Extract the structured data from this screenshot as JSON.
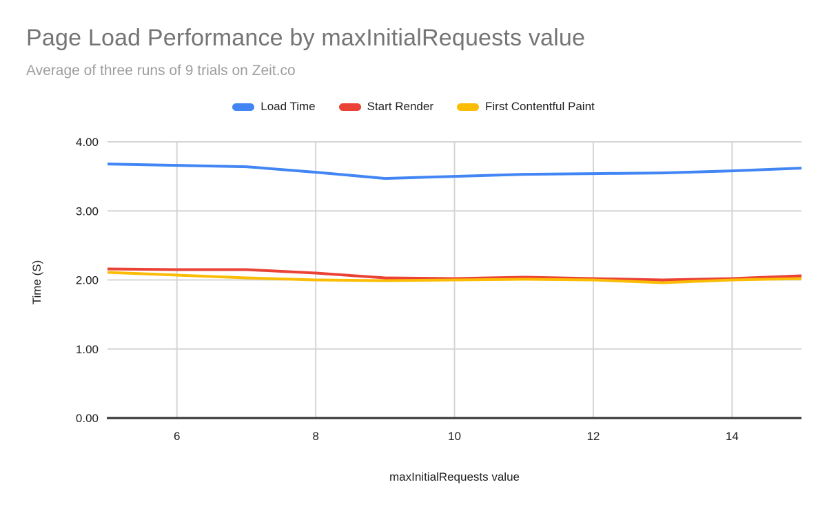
{
  "chart_data": {
    "type": "line",
    "title": "Page Load Performance by maxInitialRequests value",
    "subtitle": "Average of three runs of 9 trials on Zeit.co",
    "xlabel": "maxInitialRequests value",
    "ylabel": "Time (S)",
    "legend_position": "top",
    "grid": true,
    "x": [
      5,
      6,
      7,
      8,
      9,
      10,
      11,
      12,
      13,
      14,
      15
    ],
    "xlim": [
      5,
      15
    ],
    "ylim": [
      0,
      4
    ],
    "x_ticks": [
      {
        "value": 6,
        "label": "6"
      },
      {
        "value": 8,
        "label": "8"
      },
      {
        "value": 10,
        "label": "10"
      },
      {
        "value": 12,
        "label": "12"
      },
      {
        "value": 14,
        "label": "14"
      }
    ],
    "y_ticks": [
      {
        "value": 0,
        "label": "0.00"
      },
      {
        "value": 1,
        "label": "1.00"
      },
      {
        "value": 2,
        "label": "2.00"
      },
      {
        "value": 3,
        "label": "3.00"
      },
      {
        "value": 4,
        "label": "4.00"
      }
    ],
    "series": [
      {
        "name": "Load Time",
        "color": "#4285F4",
        "values": [
          3.68,
          3.66,
          3.64,
          3.56,
          3.47,
          3.5,
          3.53,
          3.54,
          3.55,
          3.58,
          3.62
        ]
      },
      {
        "name": "Start Render",
        "color": "#EA4335",
        "values": [
          2.16,
          2.15,
          2.15,
          2.1,
          2.03,
          2.02,
          2.04,
          2.02,
          2.0,
          2.02,
          2.06
        ]
      },
      {
        "name": "First Contentful Paint",
        "color": "#FBBC04",
        "values": [
          2.11,
          2.07,
          2.03,
          2.0,
          1.99,
          2.0,
          2.01,
          2.0,
          1.96,
          2.0,
          2.02
        ]
      }
    ]
  },
  "style": {
    "background": "#ffffff",
    "title_color": "#757575",
    "subtitle_color": "#9e9e9e",
    "grid_color": "#d5d5d5",
    "axis_line_color": "#333333",
    "tick_label_color": "#212121"
  }
}
